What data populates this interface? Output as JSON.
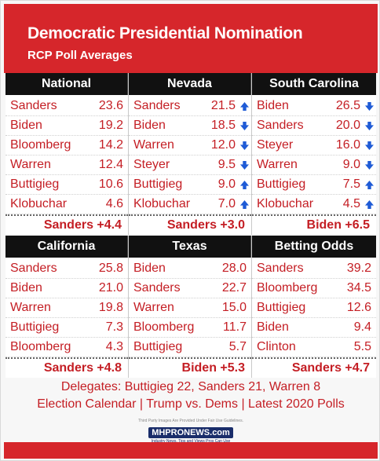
{
  "header": {
    "title": "Democratic Presidential Nomination",
    "subtitle": "RCP Poll Averages"
  },
  "colors": {
    "accent_red": "#d6262b",
    "text_red": "#c41e24",
    "head_black": "#111111",
    "arrow_blue": "#1f5bd6"
  },
  "top_panels": [
    {
      "title": "National",
      "rows": [
        {
          "name": "Sanders",
          "value": "23.6"
        },
        {
          "name": "Biden",
          "value": "19.2"
        },
        {
          "name": "Bloomberg",
          "value": "14.2"
        },
        {
          "name": "Warren",
          "value": "12.4"
        },
        {
          "name": "Buttigieg",
          "value": "10.6"
        },
        {
          "name": "Klobuchar",
          "value": "4.6"
        }
      ],
      "lead": "Sanders +4.4"
    },
    {
      "title": "Nevada",
      "rows": [
        {
          "name": "Sanders",
          "value": "21.5",
          "trend": "up"
        },
        {
          "name": "Biden",
          "value": "18.5",
          "trend": "down"
        },
        {
          "name": "Warren",
          "value": "12.0",
          "trend": "down"
        },
        {
          "name": "Steyer",
          "value": "9.5",
          "trend": "down"
        },
        {
          "name": "Buttigieg",
          "value": "9.0",
          "trend": "up"
        },
        {
          "name": "Klobuchar",
          "value": "7.0",
          "trend": "up"
        }
      ],
      "lead": "Sanders +3.0"
    },
    {
      "title": "South Carolina",
      "rows": [
        {
          "name": "Biden",
          "value": "26.5",
          "trend": "down"
        },
        {
          "name": "Sanders",
          "value": "20.0",
          "trend": "down"
        },
        {
          "name": "Steyer",
          "value": "16.0",
          "trend": "down"
        },
        {
          "name": "Warren",
          "value": "9.0",
          "trend": "down"
        },
        {
          "name": "Buttigieg",
          "value": "7.5",
          "trend": "up"
        },
        {
          "name": "Klobuchar",
          "value": "4.5",
          "trend": "up"
        }
      ],
      "lead": "Biden +6.5"
    }
  ],
  "bottom_panels": [
    {
      "title": "California",
      "rows": [
        {
          "name": "Sanders",
          "value": "25.8"
        },
        {
          "name": "Biden",
          "value": "21.0"
        },
        {
          "name": "Warren",
          "value": "19.8"
        },
        {
          "name": "Buttigieg",
          "value": "7.3"
        },
        {
          "name": "Bloomberg",
          "value": "4.3"
        }
      ],
      "lead": "Sanders +4.8"
    },
    {
      "title": "Texas",
      "rows": [
        {
          "name": "Biden",
          "value": "28.0"
        },
        {
          "name": "Sanders",
          "value": "22.7"
        },
        {
          "name": "Warren",
          "value": "15.0"
        },
        {
          "name": "Bloomberg",
          "value": "11.7"
        },
        {
          "name": "Buttigieg",
          "value": "5.7"
        }
      ],
      "lead": "Biden +5.3"
    },
    {
      "title": "Betting Odds",
      "rows": [
        {
          "name": "Sanders",
          "value": "39.2"
        },
        {
          "name": "Bloomberg",
          "value": "34.5"
        },
        {
          "name": "Buttigieg",
          "value": "12.6"
        },
        {
          "name": "Biden",
          "value": "9.4"
        },
        {
          "name": "Clinton",
          "value": "5.5"
        }
      ],
      "lead": "Sanders +4.7"
    }
  ],
  "footer": {
    "delegates": "Delegates: Buttigieg 22, Sanders 21, Warren 8",
    "links": "Election Calendar | Trump vs. Dems | Latest 2020 Polls"
  },
  "logo": {
    "disclaimer": "Third Party Images Are Provided Under Fair Use Guidelines.",
    "name": "MHPRONEWS.com",
    "tagline": "Industry News, Tips and Views Pros Can Use"
  }
}
